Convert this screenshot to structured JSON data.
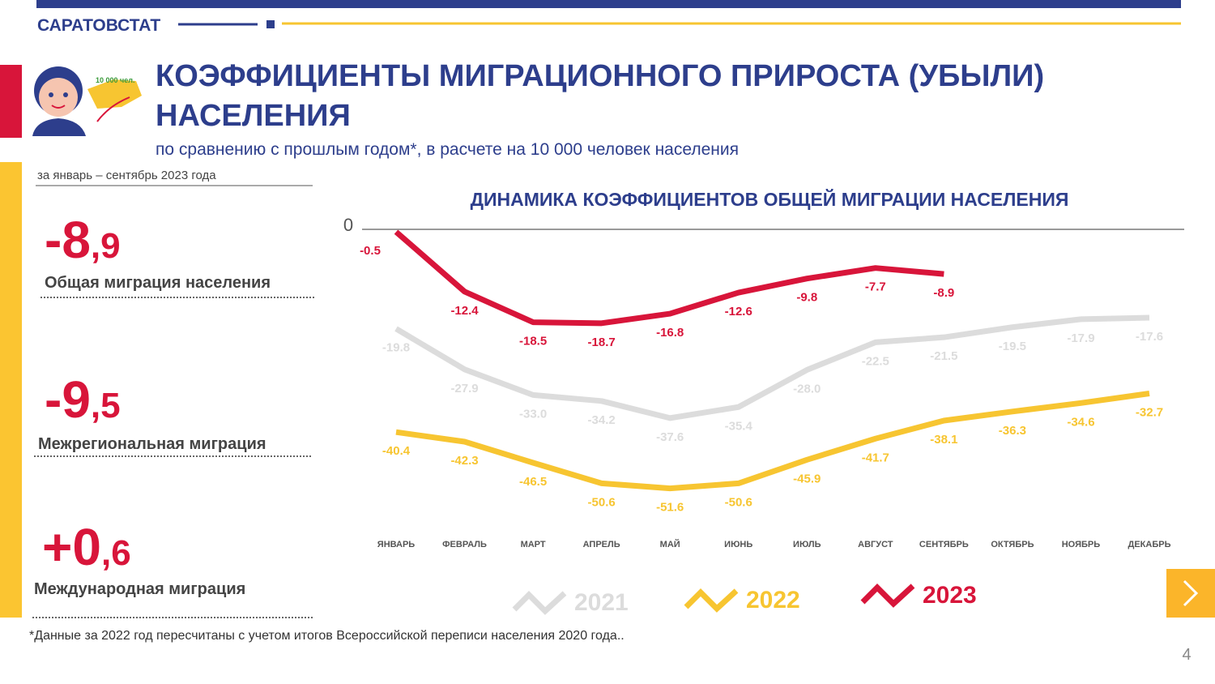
{
  "header": {
    "brand": "САРАТОВСТАТ",
    "title": [
      "КОЭФФИЦИЕНТЫ МИГРАЦИОННОГО ПРИРОСТА (УБЫЛИ)",
      "НАСЕЛЕНИЯ"
    ],
    "subtitle": "по сравнению с прошлым годом*, в расчете на 10 000 человек населения",
    "icon_text": "10 000 чел.",
    "period": "за январь – сентябрь 2023 года"
  },
  "summary": [
    {
      "integer": "-8",
      "fraction": ",9",
      "label": "Общая миграция населения"
    },
    {
      "integer": "-9",
      "fraction": ",5",
      "label": "Межрегиональная миграция"
    },
    {
      "integer": "+0",
      "fraction": ",6",
      "label": "Международная миграция"
    }
  ],
  "chart_data": {
    "type": "line",
    "title": "ДИНАМИКА  КОЭФФИЦИЕНТОВ  ОБЩЕЙ МИГРАЦИИ  НАСЕЛЕНИЯ",
    "categories": [
      "ЯНВАРЬ",
      "ФЕВРАЛЬ",
      "МАРТ",
      "АПРЕЛЬ",
      "МАЙ",
      "ИЮНЬ",
      "ИЮЛЬ",
      "АВГУСТ",
      "СЕНТЯБРЬ",
      "ОКТЯБРЬ",
      "НОЯБРЬ",
      "ДЕКАБРЬ"
    ],
    "series": [
      {
        "name": "2021",
        "color": "#dcdcdc",
        "values": [
          -19.8,
          -27.9,
          -33.0,
          -34.2,
          -37.6,
          -35.4,
          -28.0,
          -22.5,
          -21.5,
          -19.5,
          -17.9,
          -17.6
        ],
        "value_labels": [
          "-19.8",
          "-27.9",
          "-33.0",
          "-34.2",
          "-37.6",
          "-35.4",
          "-28.0",
          "-22.5",
          "-21.5",
          "-19.5",
          "-17.9",
          "-17.6"
        ]
      },
      {
        "name": "2022",
        "color": "#f7c531",
        "values": [
          -40.4,
          -42.3,
          -46.5,
          -50.6,
          -51.6,
          -50.6,
          -45.9,
          -41.7,
          -38.1,
          -36.3,
          -34.6,
          -32.7
        ],
        "value_labels": [
          "-40.4",
          "-42.3",
          "-46.5",
          "-50.6",
          "-51.6",
          "-50.6",
          "-45.9",
          "-41.7",
          "-38.1",
          "-36.3",
          "-34.6",
          "-32.7"
        ]
      },
      {
        "name": "2023",
        "color": "#d8153a",
        "values": [
          -0.5,
          -12.4,
          -18.5,
          -18.7,
          -16.8,
          -12.6,
          -9.8,
          -7.7,
          -8.9,
          null,
          null,
          null
        ],
        "value_labels": [
          "-0.5",
          "-12.4",
          "-18.5",
          "-18.7",
          "-16.8",
          "-12.6",
          "-9.8",
          "-7.7",
          "-8.9",
          null,
          null,
          null
        ]
      }
    ],
    "ylim": [
      -62,
      0
    ],
    "yticks": [
      0
    ]
  },
  "footnote": "*Данные за 2022 год пересчитаны с учетом итогов Всероссийской переписи населения 2020 года..",
  "page_number": "4"
}
